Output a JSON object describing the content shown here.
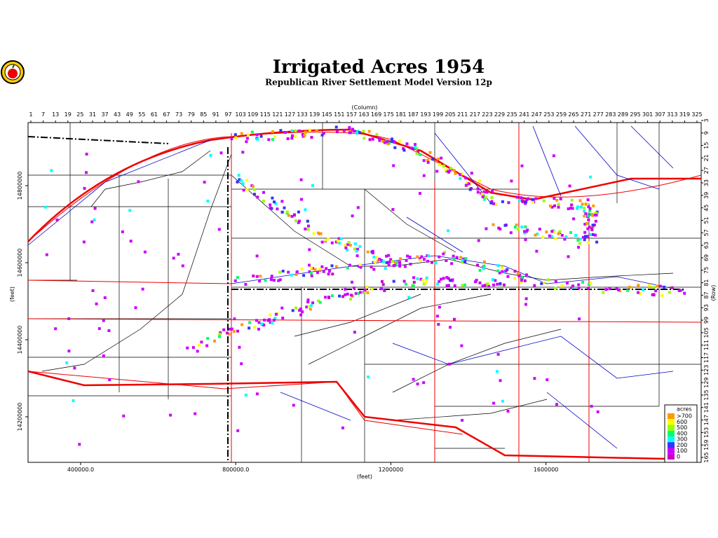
{
  "header": {
    "title": "Irrigated Acres 1954",
    "subtitle": "Republican River Settlement Model Version 12p"
  },
  "top_axis": {
    "label": "(Column)",
    "range": [
      1,
      325
    ],
    "ticks": [
      1,
      7,
      13,
      19,
      25,
      31,
      37,
      43,
      49,
      55,
      61,
      67,
      73,
      79,
      85,
      91,
      97,
      103,
      109,
      115,
      121,
      127,
      133,
      139,
      145,
      151,
      157,
      163,
      169,
      175,
      181,
      187,
      193,
      199,
      205,
      211,
      217,
      223,
      229,
      235,
      241,
      247,
      253,
      259,
      265,
      271,
      277,
      283,
      289,
      295,
      301,
      307,
      313,
      319,
      325
    ]
  },
  "right_axis": {
    "label": "(Row)",
    "range": [
      3,
      165
    ],
    "ticks": [
      3,
      9,
      15,
      21,
      27,
      33,
      39,
      45,
      51,
      57,
      63,
      69,
      75,
      81,
      87,
      93,
      99,
      105,
      111,
      117,
      123,
      129,
      135,
      141,
      147,
      153,
      159,
      165
    ]
  },
  "bottom_axis": {
    "label": "(feet)",
    "ticks": [
      {
        "value": 400000,
        "label": "400000.0"
      },
      {
        "value": 800000,
        "label": "800000.0"
      },
      1200000,
      1600000
    ]
  },
  "left_axis": {
    "label": "(feet)",
    "ticks": [
      14800000,
      14600000,
      14400000,
      14200000
    ]
  },
  "legend": {
    "title": "acres",
    "entries": [
      {
        "label": ">700",
        "color": "#ff9900"
      },
      {
        "label": "600",
        "color": "#ffff00"
      },
      {
        "label": "500",
        "color": "#99ff00"
      },
      {
        "label": "400",
        "color": "#00ff66"
      },
      {
        "label": "300",
        "color": "#00ffff"
      },
      {
        "label": "200",
        "color": "#3333ff"
      },
      {
        "label": "100",
        "color": "#cc00ff"
      },
      {
        "label": "0",
        "color": "#cc00cc"
      }
    ]
  }
}
